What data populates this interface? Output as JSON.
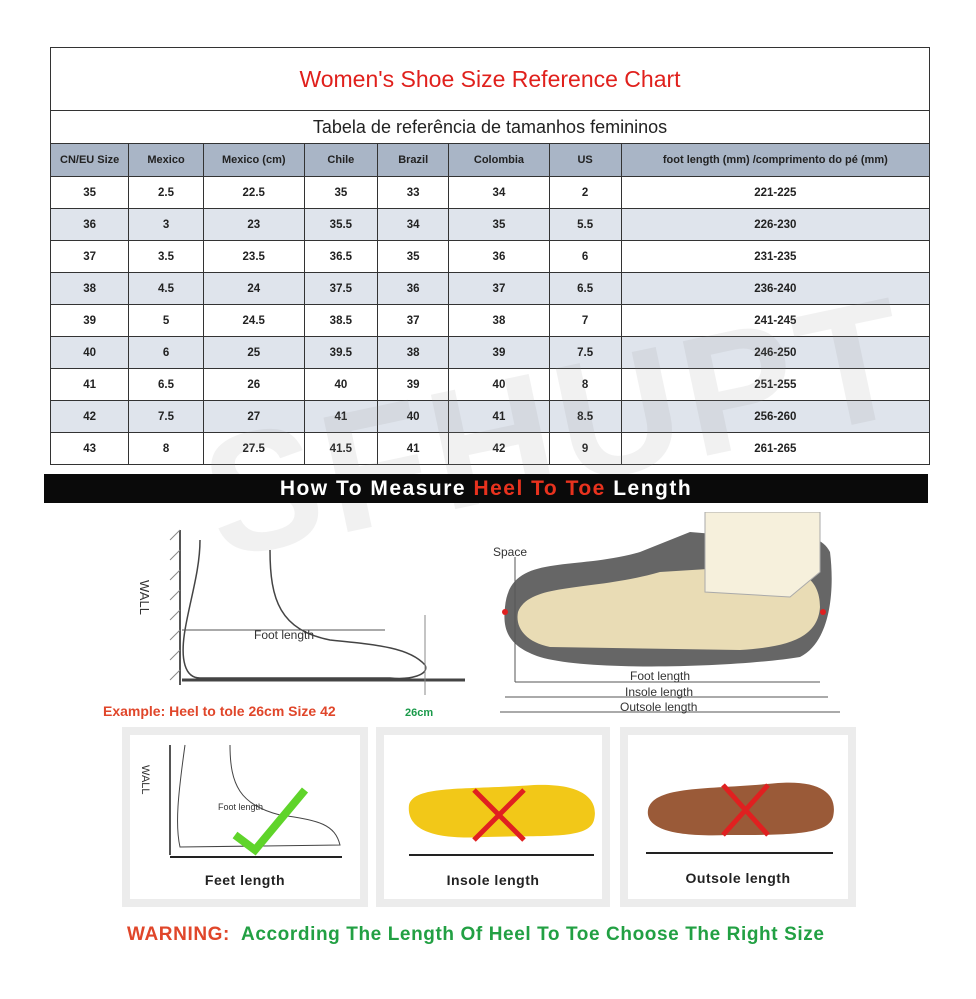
{
  "title": "Women's Shoe Size Reference Chart",
  "subtitle": "Tabela de referência de tamanhos femininos",
  "table": {
    "headers": [
      "CN/EU Size",
      "Mexico",
      "Mexico  (cm)",
      "Chile",
      "Brazil",
      "Colombia",
      "US",
      "foot length  (mm)  /comprimento do pé  (mm)"
    ],
    "rows": [
      [
        "35",
        "2.5",
        "22.5",
        "35",
        "33",
        "34",
        "2",
        "221-225"
      ],
      [
        "36",
        "3",
        "23",
        "35.5",
        "34",
        "35",
        "5.5",
        "226-230"
      ],
      [
        "37",
        "3.5",
        "23.5",
        "36.5",
        "35",
        "36",
        "6",
        "231-235"
      ],
      [
        "38",
        "4.5",
        "24",
        "37.5",
        "36",
        "37",
        "6.5",
        "236-240"
      ],
      [
        "39",
        "5",
        "24.5",
        "38.5",
        "37",
        "38",
        "7",
        "241-245"
      ],
      [
        "40",
        "6",
        "25",
        "39.5",
        "38",
        "39",
        "7.5",
        "246-250"
      ],
      [
        "41",
        "6.5",
        "26",
        "40",
        "39",
        "40",
        "8",
        "251-255"
      ],
      [
        "42",
        "7.5",
        "27",
        "41",
        "40",
        "41",
        "8.5",
        "256-260"
      ],
      [
        "43",
        "8",
        "27.5",
        "41.5",
        "41",
        "42",
        "9",
        "261-265"
      ]
    ]
  },
  "watermark": "SFHUPT",
  "banner": {
    "pre": "How To Measure ",
    "highlight": "Heel To Toe",
    "post": " Length"
  },
  "diagram_left": {
    "wall": "WALL",
    "foot_length": "Foot length",
    "example": "Example: Heel to tole 26cm Size 42",
    "cm": "26cm"
  },
  "diagram_right": {
    "space": "Space",
    "foot_length": "Foot length",
    "insole_length": "Insole length",
    "outsole_length": "Outsole length"
  },
  "methods": [
    {
      "label": "Feet length",
      "wall": "WALL",
      "inner": "Foot length",
      "correct": true
    },
    {
      "label": "Insole length",
      "correct": false
    },
    {
      "label": "Outsole length",
      "correct": false
    }
  ],
  "warning": {
    "prefix": "WARNING:",
    "text": "According The Length Of Heel To Toe Choose The Right Size"
  },
  "colors": {
    "title": "#e0201c",
    "header_bg": "#a9b5c6",
    "alt_row": "#dfe4ec",
    "highlight": "#e8321e",
    "warning_green": "#22a043"
  }
}
